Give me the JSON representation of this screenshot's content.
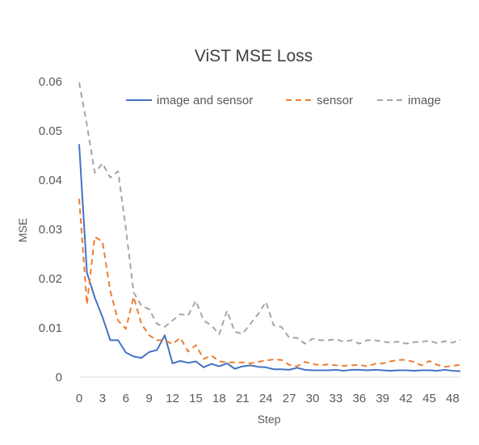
{
  "chart_data": {
    "type": "line",
    "title": "ViST MSE Loss",
    "xlabel": "Step",
    "ylabel": "MSE",
    "xlim": [
      0,
      49
    ],
    "ylim": [
      0,
      0.06
    ],
    "x_ticks": [
      0,
      3,
      6,
      9,
      12,
      15,
      18,
      21,
      24,
      27,
      30,
      33,
      36,
      39,
      42,
      45,
      48
    ],
    "y_ticks": [
      0,
      0.01,
      0.02,
      0.03,
      0.04,
      0.05,
      0.06
    ],
    "y_tick_labels": [
      "0",
      "0.01",
      "0.02",
      "0.03",
      "0.04",
      "0.05",
      "0.06"
    ],
    "grid": false,
    "legend": "top",
    "x": [
      0,
      1,
      2,
      3,
      4,
      5,
      6,
      7,
      8,
      9,
      10,
      11,
      12,
      13,
      14,
      15,
      16,
      17,
      18,
      19,
      20,
      21,
      22,
      23,
      24,
      25,
      26,
      27,
      28,
      29,
      30,
      31,
      32,
      33,
      34,
      35,
      36,
      37,
      38,
      39,
      40,
      41,
      42,
      43,
      44,
      45,
      46,
      47,
      48,
      49
    ],
    "series": [
      {
        "name": "image and sensor",
        "color": "#4472C4",
        "dash": "solid",
        "values": [
          0.0473,
          0.0212,
          0.0162,
          0.0122,
          0.0075,
          0.0075,
          0.005,
          0.0042,
          0.0039,
          0.0051,
          0.0055,
          0.0085,
          0.0028,
          0.0033,
          0.0029,
          0.0032,
          0.002,
          0.0027,
          0.0022,
          0.0028,
          0.0017,
          0.0022,
          0.0024,
          0.0021,
          0.002,
          0.0016,
          0.0016,
          0.0015,
          0.0019,
          0.0015,
          0.0014,
          0.0014,
          0.0014,
          0.0015,
          0.0013,
          0.0015,
          0.0015,
          0.0014,
          0.0015,
          0.0014,
          0.0013,
          0.0014,
          0.0014,
          0.0013,
          0.0014,
          0.0014,
          0.0013,
          0.0015,
          0.0013,
          0.0012
        ]
      },
      {
        "name": "sensor",
        "color": "#ED7D31",
        "dash": "dashed",
        "values": [
          0.0362,
          0.0148,
          0.0285,
          0.0275,
          0.0175,
          0.0115,
          0.0098,
          0.0163,
          0.0108,
          0.0085,
          0.0075,
          0.0075,
          0.0067,
          0.008,
          0.0052,
          0.0065,
          0.0037,
          0.0044,
          0.0032,
          0.003,
          0.003,
          0.003,
          0.0028,
          0.0031,
          0.0034,
          0.0036,
          0.0035,
          0.0025,
          0.0022,
          0.0031,
          0.0027,
          0.0024,
          0.0026,
          0.0024,
          0.0023,
          0.0024,
          0.0025,
          0.0022,
          0.0027,
          0.0028,
          0.0032,
          0.0035,
          0.0035,
          0.0031,
          0.0024,
          0.0033,
          0.0025,
          0.0021,
          0.0023,
          0.0025
        ]
      },
      {
        "name": "image",
        "color": "#A5A5A5",
        "dash": "dashed",
        "values": [
          0.0598,
          0.0512,
          0.0415,
          0.0434,
          0.0405,
          0.0418,
          0.0302,
          0.0172,
          0.0145,
          0.0138,
          0.0108,
          0.0102,
          0.0115,
          0.0128,
          0.0125,
          0.0155,
          0.0115,
          0.0105,
          0.0087,
          0.0135,
          0.0092,
          0.0088,
          0.0108,
          0.0128,
          0.0153,
          0.0105,
          0.0102,
          0.008,
          0.008,
          0.0068,
          0.0078,
          0.0075,
          0.0075,
          0.0077,
          0.0072,
          0.0075,
          0.0068,
          0.0075,
          0.0075,
          0.0072,
          0.007,
          0.0072,
          0.0068,
          0.0071,
          0.0072,
          0.0074,
          0.0069,
          0.0073,
          0.007,
          0.0076
        ]
      }
    ]
  }
}
